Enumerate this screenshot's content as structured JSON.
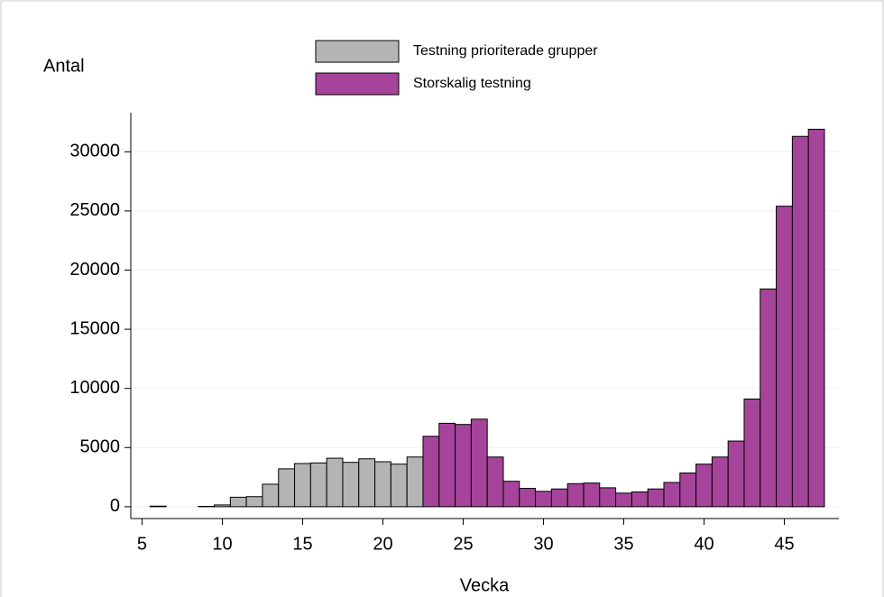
{
  "chart_data": {
    "type": "bar",
    "ylabel": "Antal",
    "xlabel": "Vecka",
    "x": [
      6,
      7,
      8,
      9,
      10,
      11,
      12,
      13,
      14,
      15,
      16,
      17,
      18,
      19,
      20,
      21,
      22,
      23,
      24,
      25,
      26,
      27,
      28,
      29,
      30,
      31,
      32,
      33,
      34,
      35,
      36,
      37,
      38,
      39,
      40,
      41,
      42,
      43,
      44,
      45,
      46,
      47
    ],
    "series": [
      {
        "name": "Testning prioriterade grupper",
        "color": "#b4b4b4",
        "values": [
          50,
          null,
          null,
          30,
          150,
          800,
          850,
          1900,
          3200,
          3650,
          3700,
          4100,
          3750,
          4050,
          3800,
          3600,
          4200,
          null,
          null,
          null,
          null,
          null,
          null,
          null,
          null,
          null,
          null,
          null,
          null,
          null,
          null,
          null,
          null,
          null,
          null,
          null,
          null,
          null,
          null,
          null,
          null,
          null
        ]
      },
      {
        "name": "Storskalig testning",
        "color": "#a6449b",
        "values": [
          null,
          null,
          null,
          null,
          null,
          null,
          null,
          null,
          null,
          null,
          null,
          null,
          null,
          null,
          null,
          null,
          null,
          5950,
          7050,
          6950,
          7400,
          4200,
          2150,
          1550,
          1300,
          1500,
          1950,
          2000,
          1600,
          1150,
          1250,
          1500,
          2050,
          2850,
          3600,
          4200,
          5550,
          9100,
          18400,
          25400,
          31300,
          31900
        ]
      }
    ],
    "xlim": [
      4.3,
      48.4
    ],
    "xticks": [
      5,
      10,
      15,
      20,
      25,
      30,
      35,
      40,
      45
    ],
    "ylim": [
      -1000,
      33300
    ],
    "yticks": [
      0,
      5000,
      10000,
      15000,
      20000,
      25000,
      30000
    ],
    "grid": true
  }
}
